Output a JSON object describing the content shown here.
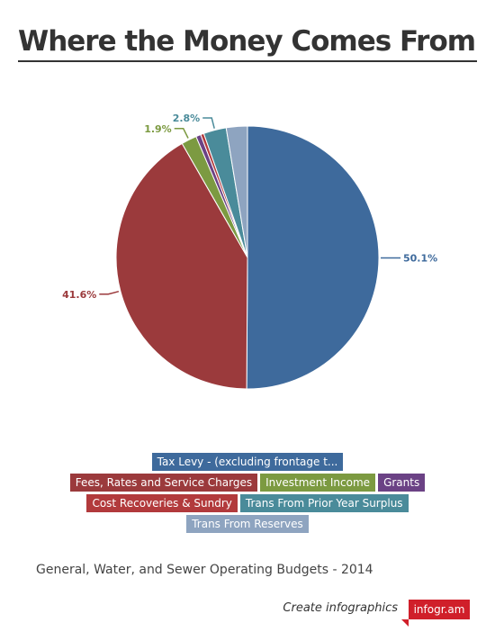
{
  "title": "Where the Money Comes From",
  "subtitle": "General, Water, and Sewer Operating Budgets - 2014",
  "footer": {
    "create_text": "Create infographics",
    "badge_text": "infogr.am"
  },
  "chart_data": {
    "type": "pie",
    "slices": [
      {
        "name": "Tax Levy - (excluding frontage t...",
        "value": 50.1,
        "color": "#3e6a9c",
        "label": "50.1%"
      },
      {
        "name": "Fees, Rates and Service Charges",
        "value": 41.6,
        "color": "#9b3a3c",
        "label": "41.6%"
      },
      {
        "name": "Investment Income",
        "value": 1.9,
        "color": "#7c9a41",
        "label": "1.9%"
      },
      {
        "name": "Grants",
        "value": 0.6,
        "color": "#6b4285",
        "label": ""
      },
      {
        "name": "Cost Recoveries & Sundry",
        "value": 0.4,
        "color": "#b23a3c",
        "label": ""
      },
      {
        "name": "Trans From Prior Year Surplus",
        "value": 2.8,
        "color": "#4a8b9a",
        "label": "2.8%"
      },
      {
        "name": "Trans From Reserves",
        "value": 2.6,
        "color": "#8ea4c0",
        "label": ""
      }
    ]
  },
  "legend_rows": [
    [
      0
    ],
    [
      1,
      2,
      3
    ],
    [
      4,
      5
    ],
    [
      6
    ]
  ]
}
